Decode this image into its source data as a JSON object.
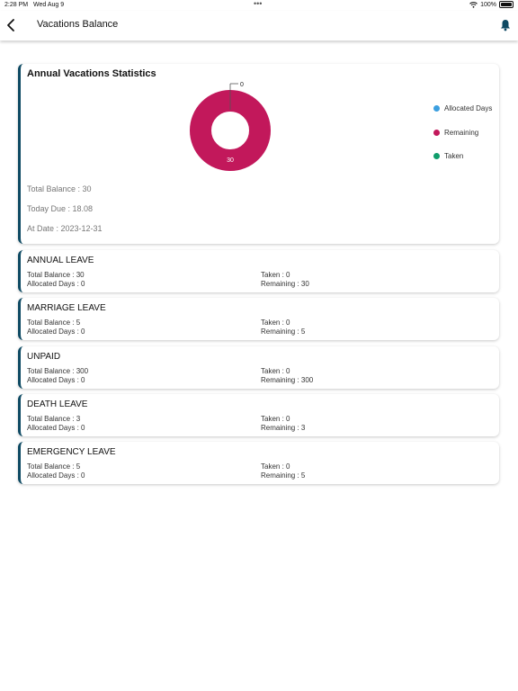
{
  "status_bar": {
    "time": "2:28 PM",
    "date": "Wed Aug 9",
    "battery": "100%"
  },
  "header": {
    "title": "Vacations Balance",
    "back_icon": "chevron-left-icon",
    "bell_icon": "bell-icon"
  },
  "colors": {
    "accent": "#0e4a63",
    "allocated": "#3b9fe0",
    "remaining": "#c2185b",
    "taken": "#0f9d6b"
  },
  "stats": {
    "title": "Annual Vacations Statistics",
    "top_label": "0",
    "center_value": "30",
    "total_balance": "Total Balance : 30",
    "today_due": "Today Due : 18.08",
    "at_date": "At Date : 2023-12-31"
  },
  "chart_data": {
    "type": "pie",
    "categories": [
      "Allocated Days",
      "Remaining",
      "Taken"
    ],
    "values": [
      0,
      30,
      0
    ],
    "donut": true
  },
  "legend": [
    {
      "label": "Allocated Days",
      "color": "#3b9fe0"
    },
    {
      "label": "Remaining",
      "color": "#c2185b"
    },
    {
      "label": "Taken",
      "color": "#0f9d6b"
    }
  ],
  "leaves": [
    {
      "name": "ANNUAL LEAVE",
      "total": "Total Balance : 30",
      "allocated": "Allocated Days : 0",
      "taken": "Taken : 0",
      "remaining": "Remaining : 30"
    },
    {
      "name": "MARRIAGE LEAVE",
      "total": "Total Balance : 5",
      "allocated": "Allocated Days : 0",
      "taken": "Taken : 0",
      "remaining": "Remaining : 5"
    },
    {
      "name": "UNPAID",
      "total": "Total Balance : 300",
      "allocated": "Allocated Days : 0",
      "taken": "Taken : 0",
      "remaining": "Remaining : 300"
    },
    {
      "name": "DEATH LEAVE",
      "total": "Total Balance : 3",
      "allocated": "Allocated Days : 0",
      "taken": "Taken : 0",
      "remaining": "Remaining : 3"
    },
    {
      "name": "EMERGENCY LEAVE",
      "total": "Total Balance : 5",
      "allocated": "Allocated Days : 0",
      "taken": "Taken : 0",
      "remaining": "Remaining : 5"
    }
  ]
}
